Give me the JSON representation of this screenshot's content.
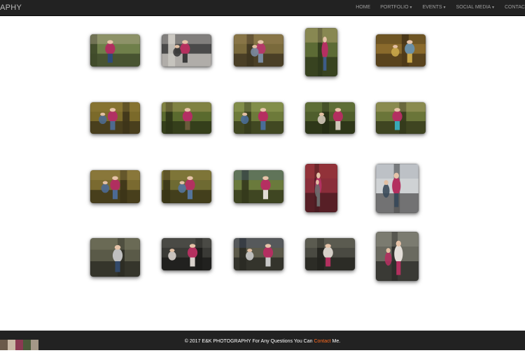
{
  "navbar": {
    "brand": "APHY",
    "items": [
      {
        "label": "HOME",
        "dropdown": false
      },
      {
        "label": "PORTFOLIO",
        "dropdown": true
      },
      {
        "label": "EVENTS",
        "dropdown": true
      },
      {
        "label": "SOCIAL MEDIA",
        "dropdown": true
      },
      {
        "label": "CONTAC",
        "dropdown": false
      }
    ]
  },
  "gallery": {
    "rows": [
      [
        "family-outdoor-photo",
        "family-porch-photo",
        "woman-reclining-photo",
        "woman-by-tree-portrait",
        "child-in-field-photo"
      ],
      [
        "child-in-grass-photo",
        "woman-by-tree-photo",
        "two-women-on-lawn-photo",
        "two-women-smiling-photo",
        "woman-by-tree-portrait"
      ],
      [
        "woman-reclining-under-tree-photo",
        "woman-reclining-photo",
        "three-women-photo",
        "woman-standing-portrait",
        "grandfather-with-family-photo"
      ],
      [
        "grandfather-with-child-photo",
        "grandparents-with-child-photo",
        "family-on-porch-steps-photo",
        "grandfather-kiss-photo",
        "grandparents-closeup-photo"
      ]
    ]
  },
  "footer": {
    "text_before": "© 2017 E&K PHOTOGRAPHY For Any Questions You Can ",
    "link": "Contact",
    "text_after": " Me."
  },
  "colors": {
    "nav_bg": "#222222",
    "nav_text": "#9d9d9d",
    "footer_link": "#ff6a1f",
    "accent_magenta": "#b0305f"
  }
}
